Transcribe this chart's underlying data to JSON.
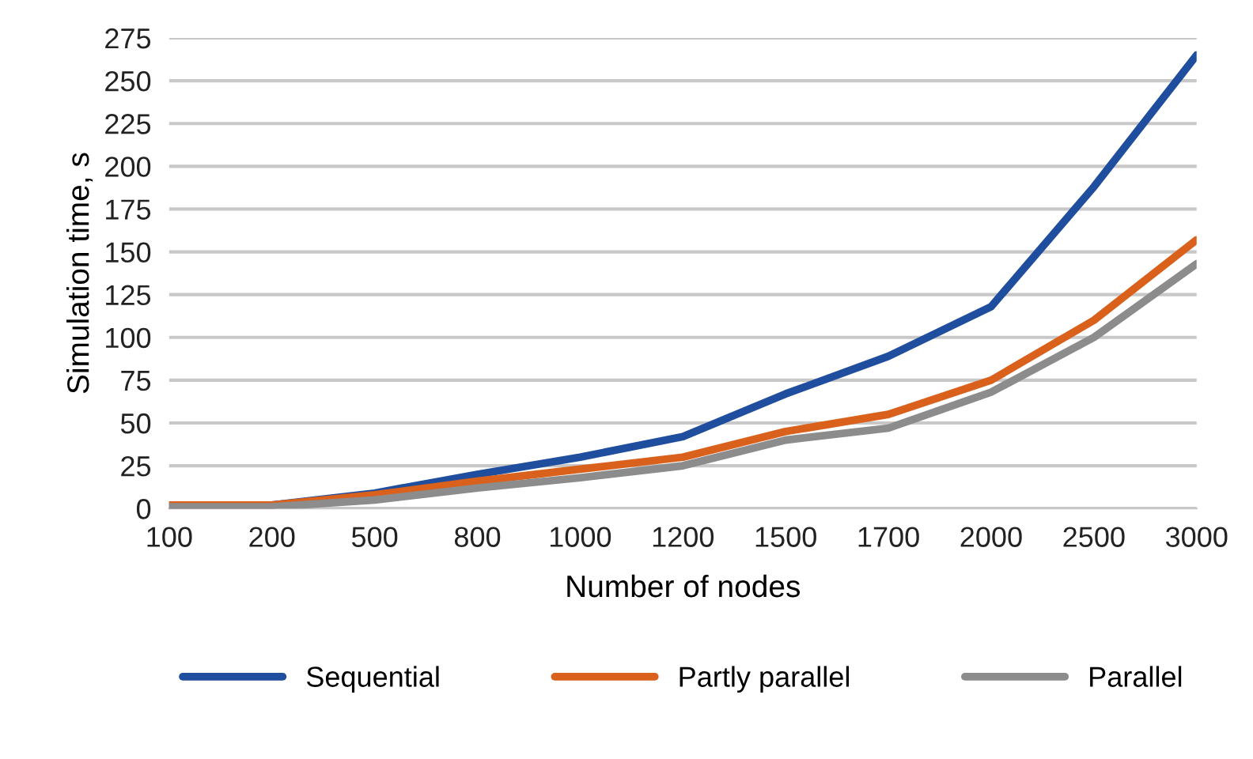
{
  "chart_data": {
    "type": "line",
    "xlabel": "Number of nodes",
    "ylabel": "Simulation time, s",
    "categories": [
      "100",
      "200",
      "500",
      "800",
      "1000",
      "1200",
      "1500",
      "1700",
      "2000",
      "2500",
      "3000"
    ],
    "series": [
      {
        "name": "Sequential",
        "color": "#1f4e9e",
        "values": [
          2,
          2,
          9,
          20,
          30,
          42,
          67,
          89,
          118,
          188,
          265
        ]
      },
      {
        "name": "Partly parallel",
        "color": "#d9611c",
        "values": [
          2,
          2,
          8,
          16,
          23,
          30,
          45,
          55,
          75,
          110,
          157
        ]
      },
      {
        "name": "Parallel",
        "color": "#8c8c8c",
        "values": [
          1,
          1,
          5,
          12,
          18,
          25,
          40,
          47,
          68,
          100,
          143
        ]
      }
    ],
    "ylim": [
      0,
      275
    ],
    "yticks": [
      0,
      25,
      50,
      75,
      100,
      125,
      150,
      175,
      200,
      225,
      250,
      275
    ],
    "grid": "y",
    "legend": "bottom",
    "marker": "none",
    "line_style": "solid"
  }
}
